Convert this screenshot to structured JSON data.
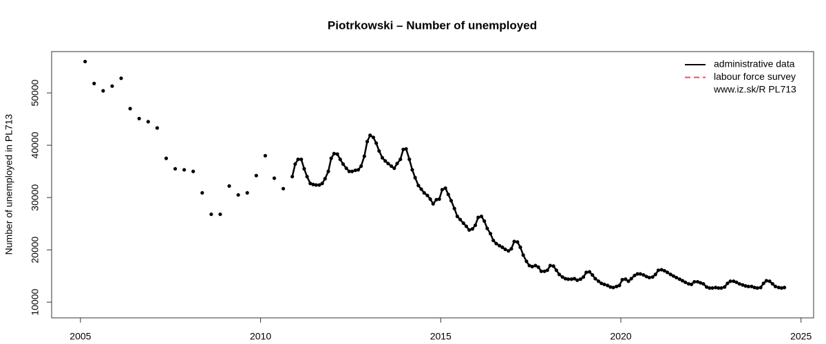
{
  "chart_data": {
    "type": "line",
    "title": "Piotrkowski – Number of unemployed",
    "y_label": "Number of unemployed in PL713",
    "xlim": [
      2004.2,
      2025.35
    ],
    "xticks": [
      2005,
      2010,
      2015,
      2020,
      2025
    ],
    "ylim": [
      7000,
      57900
    ],
    "yticks": [
      10000,
      20000,
      30000,
      40000,
      50000
    ],
    "grid": false,
    "legend_position": "top-right",
    "legend_note": "www.iz.sk/R PL713",
    "series": [
      {
        "name": "administrative data",
        "color": "#000000",
        "linestyle": "solid",
        "markers": true,
        "x": [
          2005.13,
          2005.21,
          2005.38,
          2005.46,
          2005.63,
          2005.71,
          2005.88,
          2005.96,
          2006.13,
          2006.21,
          2006.38,
          2006.46,
          2006.63,
          2006.71,
          2006.88,
          2006.96,
          2007.13,
          2007.21,
          2007.38,
          2007.46,
          2007.63,
          2007.71,
          2007.88,
          2007.96,
          2008.13,
          2008.21,
          2008.38,
          2008.46,
          2008.63,
          2008.71,
          2008.88,
          2008.96,
          2009.13,
          2009.21,
          2009.38,
          2009.46,
          2009.63,
          2009.71,
          2009.88,
          2009.96,
          2010.13,
          2010.21,
          2010.38,
          2010.46,
          2010.63,
          2010.71,
          2010.88,
          2010.96,
          2011.04,
          2011.13,
          2011.21,
          2011.29,
          2011.38,
          2011.46,
          2011.54,
          2011.63,
          2011.71,
          2011.79,
          2011.88,
          2011.96,
          2012.04,
          2012.13,
          2012.21,
          2012.29,
          2012.38,
          2012.46,
          2012.54,
          2012.63,
          2012.71,
          2012.79,
          2012.88,
          2012.96,
          2013.04,
          2013.13,
          2013.21,
          2013.29,
          2013.38,
          2013.46,
          2013.54,
          2013.63,
          2013.71,
          2013.79,
          2013.88,
          2013.96,
          2014.04,
          2014.13,
          2014.21,
          2014.29,
          2014.38,
          2014.46,
          2014.54,
          2014.63,
          2014.71,
          2014.79,
          2014.88,
          2014.96,
          2015.04,
          2015.13,
          2015.21,
          2015.29,
          2015.38,
          2015.46,
          2015.54,
          2015.63,
          2015.71,
          2015.79,
          2015.88,
          2015.96,
          2016.04,
          2016.13,
          2016.21,
          2016.29,
          2016.38,
          2016.46,
          2016.54,
          2016.63,
          2016.71,
          2016.79,
          2016.88,
          2016.96,
          2017.04,
          2017.13,
          2017.21,
          2017.29,
          2017.38,
          2017.46,
          2017.54,
          2017.63,
          2017.71,
          2017.79,
          2017.88,
          2017.96,
          2018.04,
          2018.13,
          2018.21,
          2018.29,
          2018.38,
          2018.46,
          2018.54,
          2018.63,
          2018.71,
          2018.79,
          2018.88,
          2018.96,
          2019.04,
          2019.13,
          2019.21,
          2019.29,
          2019.38,
          2019.46,
          2019.54,
          2019.63,
          2019.71,
          2019.79,
          2019.88,
          2019.96,
          2020.04,
          2020.13,
          2020.21,
          2020.29,
          2020.38,
          2020.46,
          2020.54,
          2020.63,
          2020.71,
          2020.79,
          2020.88,
          2020.96,
          2021.04,
          2021.13,
          2021.21,
          2021.29,
          2021.38,
          2021.46,
          2021.54,
          2021.63,
          2021.71,
          2021.79,
          2021.88,
          2021.96,
          2022.04,
          2022.13,
          2022.21,
          2022.29,
          2022.38,
          2022.46,
          2022.54,
          2022.63,
          2022.71,
          2022.79,
          2022.88,
          2022.96,
          2023.04,
          2023.13,
          2023.21,
          2023.29,
          2023.38,
          2023.46,
          2023.54,
          2023.63,
          2023.71,
          2023.79,
          2023.88,
          2023.96,
          2024.04,
          2024.13,
          2024.21,
          2024.29,
          2024.38,
          2024.46,
          2024.54
        ],
        "values": [
          56000,
          null,
          51800,
          null,
          50400,
          null,
          51300,
          null,
          52800,
          null,
          47000,
          null,
          45100,
          null,
          44500,
          null,
          43300,
          null,
          37500,
          null,
          35500,
          null,
          35300,
          null,
          35000,
          null,
          30900,
          null,
          26800,
          null,
          26800,
          null,
          32200,
          null,
          30500,
          null,
          30900,
          null,
          34200,
          null,
          38000,
          null,
          33700,
          null,
          31700,
          null,
          34000,
          36400,
          37300,
          37300,
          35500,
          34000,
          32700,
          32500,
          32400,
          32400,
          32700,
          33600,
          35000,
          37500,
          38400,
          38300,
          37300,
          36400,
          35600,
          35000,
          35000,
          35200,
          35300,
          36000,
          37900,
          40700,
          41900,
          41500,
          40400,
          38900,
          37600,
          37000,
          36500,
          36000,
          35600,
          36500,
          37300,
          39200,
          39300,
          37300,
          35300,
          33800,
          32300,
          31600,
          30900,
          30400,
          29700,
          28800,
          29600,
          29700,
          31500,
          31800,
          30600,
          29400,
          27900,
          26400,
          25800,
          25100,
          24500,
          23800,
          24000,
          24700,
          26200,
          26400,
          25500,
          24100,
          23100,
          21800,
          21200,
          20800,
          20500,
          20100,
          19800,
          20200,
          21600,
          21500,
          20500,
          19000,
          17800,
          17000,
          16800,
          17000,
          16700,
          15900,
          15900,
          16100,
          17000,
          16900,
          16100,
          15300,
          14800,
          14500,
          14400,
          14400,
          14500,
          14200,
          14400,
          14800,
          15700,
          15800,
          15200,
          14500,
          14000,
          13600,
          13400,
          13200,
          12900,
          12800,
          13000,
          13200,
          14300,
          14400,
          14000,
          14500,
          15100,
          15400,
          15400,
          15200,
          14900,
          14700,
          14800,
          15300,
          16100,
          16200,
          16000,
          15700,
          15300,
          15000,
          14700,
          14400,
          14100,
          13800,
          13500,
          13400,
          13900,
          13900,
          13700,
          13500,
          12900,
          12700,
          12700,
          12800,
          12700,
          12700,
          12900,
          13600,
          14000,
          14000,
          13800,
          13500,
          13300,
          13100,
          13000,
          13000,
          12800,
          12700,
          12800,
          13600,
          14100,
          14000,
          13500,
          13000,
          12800,
          12700,
          12800
        ]
      },
      {
        "name": "labour force survey",
        "color": "#df536b",
        "linestyle": "dashed",
        "markers": false,
        "x": [],
        "values": []
      }
    ]
  }
}
